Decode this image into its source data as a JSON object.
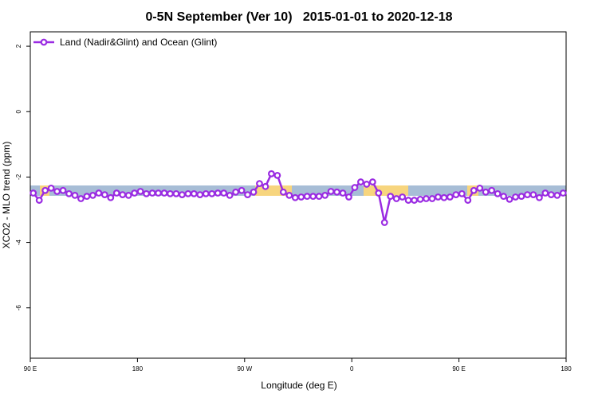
{
  "chart_data": {
    "type": "line",
    "title": "0-5N September (Ver 10)   2015-01-01 to 2020-12-18",
    "x_label": "Longitude (deg E)",
    "y_label": "XCO2 - MLO trend (ppm)",
    "x": [
      92.5,
      97.5,
      102.5,
      107.5,
      112.5,
      117.5,
      122.5,
      127.5,
      132.5,
      137.5,
      142.5,
      147.5,
      152.5,
      157.5,
      162.5,
      167.5,
      172.5,
      177.5,
      182.5,
      187.5,
      192.5,
      197.5,
      202.5,
      207.5,
      212.5,
      217.5,
      222.5,
      227.5,
      232.5,
      237.5,
      242.5,
      247.5,
      252.5,
      257.5,
      262.5,
      267.5,
      272.5,
      277.5,
      282.5,
      287.5,
      292.5,
      297.5,
      302.5,
      307.5,
      312.5,
      317.5,
      322.5,
      327.5,
      332.5,
      337.5,
      342.5,
      347.5,
      352.5,
      357.5,
      362.5,
      367.5,
      372.5,
      377.5,
      382.5,
      387.5,
      392.5,
      397.5,
      402.5,
      407.5,
      412.5,
      417.5,
      422.5,
      427.5,
      432.5,
      437.5,
      442.5,
      447.5,
      452.5,
      457.5,
      462.5,
      467.5,
      472.5,
      477.5,
      482.5,
      487.5,
      492.5,
      497.5,
      502.5,
      507.5,
      512.5,
      517.5,
      522.5,
      527.5,
      532.5,
      537.5
    ],
    "series": [
      {
        "name": "Land (Nadir&Glint) and Ocean (Glint)",
        "color": "#9a2be2",
        "values": [
          -2.49,
          -2.71,
          -2.41,
          -2.34,
          -2.44,
          -2.41,
          -2.51,
          -2.56,
          -2.66,
          -2.59,
          -2.56,
          -2.49,
          -2.54,
          -2.63,
          -2.49,
          -2.54,
          -2.56,
          -2.49,
          -2.44,
          -2.51,
          -2.49,
          -2.49,
          -2.49,
          -2.51,
          -2.51,
          -2.54,
          -2.51,
          -2.51,
          -2.54,
          -2.51,
          -2.51,
          -2.49,
          -2.49,
          -2.56,
          -2.46,
          -2.41,
          -2.54,
          -2.46,
          -2.2,
          -2.29,
          -1.9,
          -1.95,
          -2.46,
          -2.56,
          -2.63,
          -2.61,
          -2.59,
          -2.59,
          -2.59,
          -2.56,
          -2.44,
          -2.46,
          -2.49,
          -2.61,
          -2.32,
          -2.15,
          -2.22,
          -2.15,
          -2.49,
          -3.39,
          -2.59,
          -2.66,
          -2.61,
          -2.71,
          -2.71,
          -2.68,
          -2.66,
          -2.66,
          -2.61,
          -2.63,
          -2.61,
          -2.54,
          -2.51,
          -2.71,
          -2.41,
          -2.34,
          -2.46,
          -2.41,
          -2.51,
          -2.59,
          -2.68,
          -2.61,
          -2.59,
          -2.54,
          -2.54,
          -2.63,
          -2.49,
          -2.54,
          -2.56,
          -2.49
        ]
      }
    ],
    "xlim": [
      90,
      540
    ],
    "xticks": [
      {
        "value": 90,
        "label": "90 E"
      },
      180,
      {
        "value": 270,
        "label": "90 W"
      },
      {
        "value": 360,
        "label": "0"
      },
      {
        "value": 450,
        "label": "90 E"
      },
      {
        "value": 540,
        "label": "180"
      }
    ],
    "ylim": [
      -7.54,
      2.44
    ],
    "yticks": [
      2,
      0,
      -2,
      -4,
      -6
    ],
    "legend": "top-left"
  }
}
